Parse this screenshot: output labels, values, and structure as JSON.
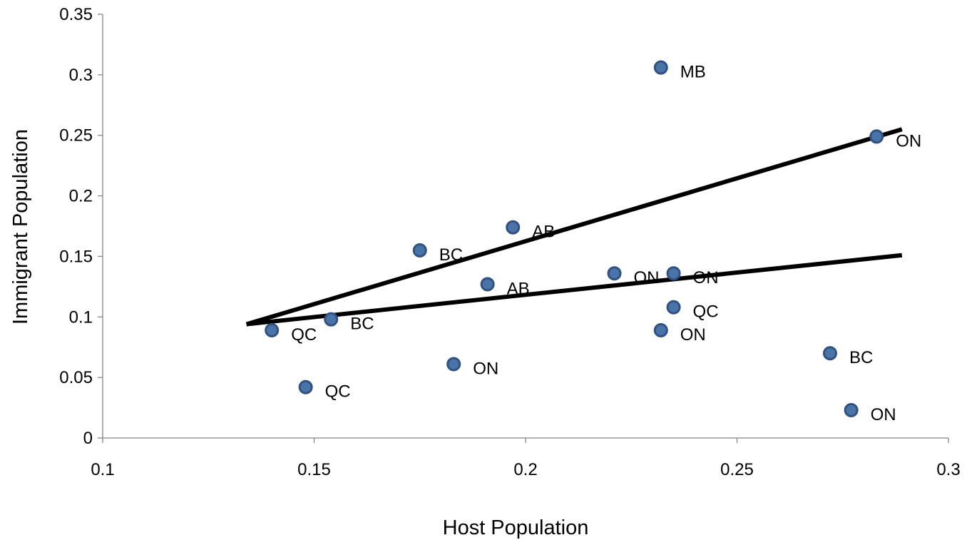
{
  "chart_data": {
    "type": "scatter",
    "title": "",
    "xlabel": "Host Population",
    "ylabel": "Immigrant Population",
    "xlim": [
      0.1,
      0.3
    ],
    "ylim": [
      0,
      0.35
    ],
    "xticks": [
      {
        "value": 0.1,
        "label": "0.1"
      },
      {
        "value": 0.15,
        "label": "0.15"
      },
      {
        "value": 0.2,
        "label": "0.2"
      },
      {
        "value": 0.25,
        "label": "0.25"
      },
      {
        "value": 0.3,
        "label": "0.3"
      }
    ],
    "yticks": [
      {
        "value": 0,
        "label": "0"
      },
      {
        "value": 0.05,
        "label": "0.05"
      },
      {
        "value": 0.1,
        "label": "0.1"
      },
      {
        "value": 0.15,
        "label": "0.15"
      },
      {
        "value": 0.2,
        "label": "0.2"
      },
      {
        "value": 0.25,
        "label": "0.25"
      },
      {
        "value": 0.3,
        "label": "0.3"
      },
      {
        "value": 0.35,
        "label": "0.35"
      }
    ],
    "grid": false,
    "legend": "none",
    "marker_color": "#4a74a8",
    "marker_edge_color": "#2f5283",
    "points": [
      {
        "x": 0.232,
        "y": 0.306,
        "label": "MB"
      },
      {
        "x": 0.283,
        "y": 0.249,
        "label": "ON"
      },
      {
        "x": 0.197,
        "y": 0.174,
        "label": "AB"
      },
      {
        "x": 0.175,
        "y": 0.155,
        "label": "BC"
      },
      {
        "x": 0.191,
        "y": 0.127,
        "label": "AB"
      },
      {
        "x": 0.221,
        "y": 0.136,
        "label": "ON"
      },
      {
        "x": 0.235,
        "y": 0.136,
        "label": "ON"
      },
      {
        "x": 0.235,
        "y": 0.108,
        "label": "QC"
      },
      {
        "x": 0.232,
        "y": 0.089,
        "label": "ON"
      },
      {
        "x": 0.154,
        "y": 0.098,
        "label": "BC"
      },
      {
        "x": 0.14,
        "y": 0.089,
        "label": "QC"
      },
      {
        "x": 0.148,
        "y": 0.042,
        "label": "QC"
      },
      {
        "x": 0.183,
        "y": 0.061,
        "label": "ON"
      },
      {
        "x": 0.272,
        "y": 0.07,
        "label": "BC"
      },
      {
        "x": 0.277,
        "y": 0.023,
        "label": "ON"
      }
    ],
    "trend_lines": [
      {
        "x": [
          0.134,
          0.289
        ],
        "y": [
          0.094,
          0.255
        ]
      },
      {
        "x": [
          0.134,
          0.289
        ],
        "y": [
          0.094,
          0.151
        ]
      }
    ]
  }
}
